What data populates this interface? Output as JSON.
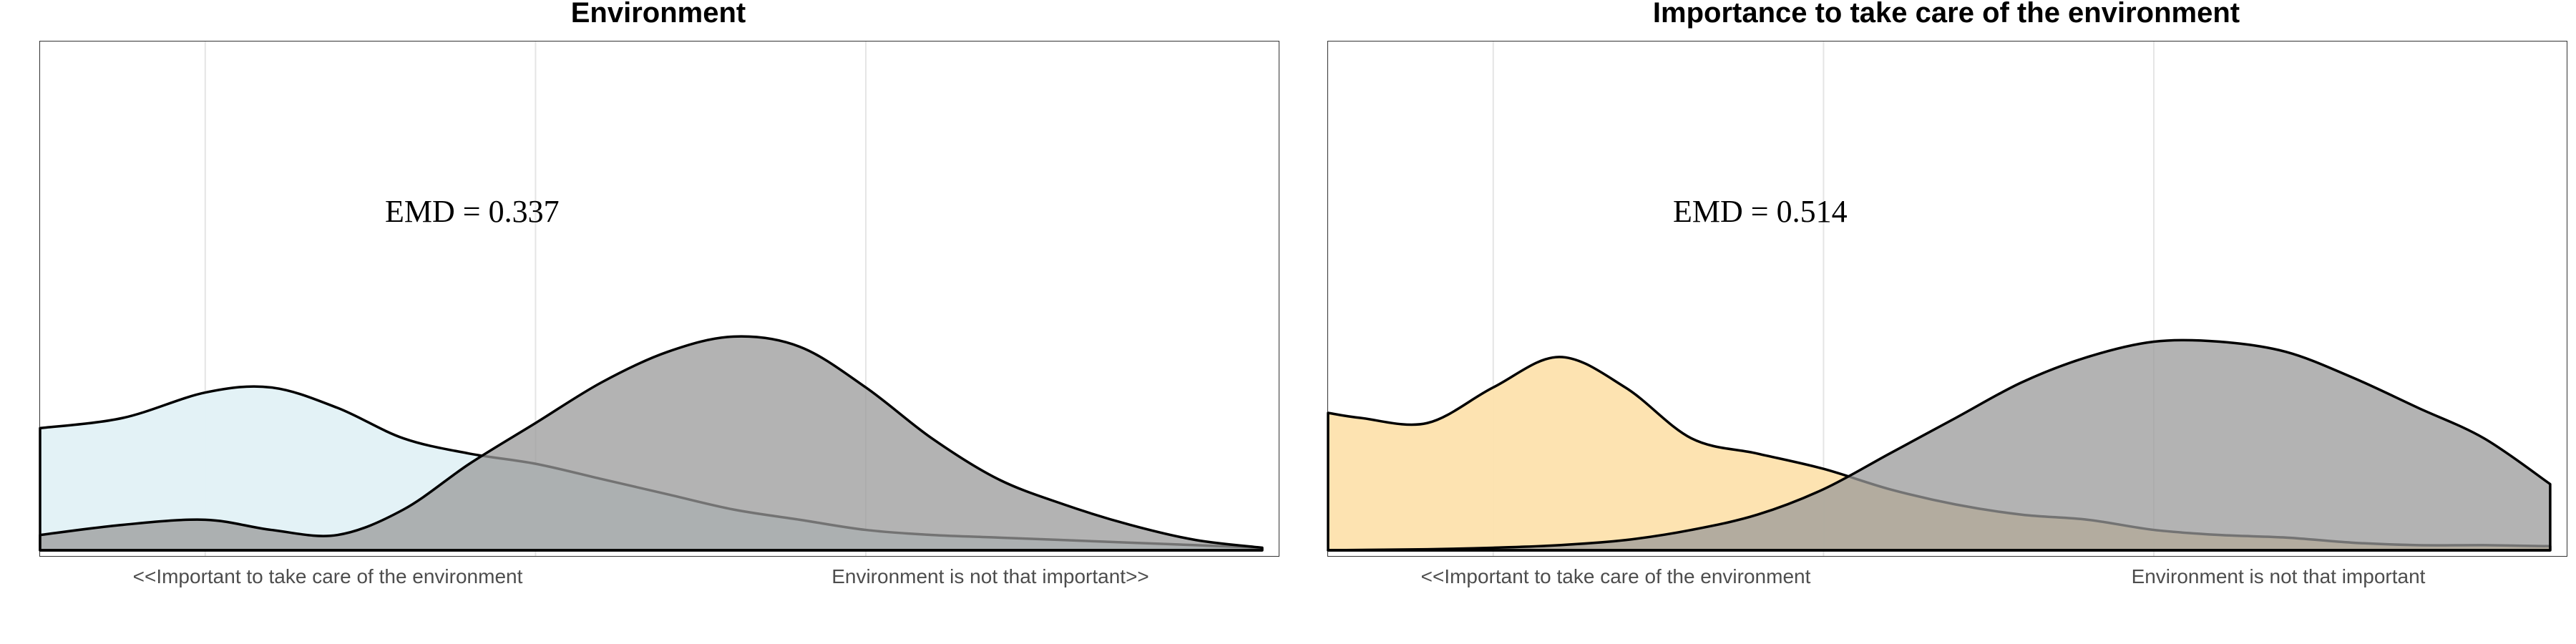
{
  "chart_data": [
    {
      "type": "area",
      "title": "Environment",
      "annotation": "EMD = 0.337",
      "x_tick_labels": [
        "<<Important to take care of the environment",
        "Environment is not that important>>"
      ],
      "xlim": [
        0.5,
        4.25
      ],
      "ylim": [
        0,
        1
      ],
      "grid": "vertical",
      "series": [
        {
          "color": "#e1f1f6",
          "x": [
            0.5,
            0.75,
            1.0,
            1.2,
            1.4,
            1.6,
            1.8,
            2.0,
            2.2,
            2.4,
            2.6,
            2.8,
            3.0,
            3.2,
            3.4,
            3.6,
            3.8,
            4.0,
            4.2
          ],
          "y": [
            0.24,
            0.26,
            0.31,
            0.32,
            0.28,
            0.22,
            0.19,
            0.17,
            0.14,
            0.11,
            0.08,
            0.06,
            0.04,
            0.03,
            0.025,
            0.02,
            0.015,
            0.01,
            0.005
          ]
        },
        {
          "color": "#999999",
          "x": [
            0.5,
            0.75,
            1.0,
            1.2,
            1.4,
            1.6,
            1.8,
            2.0,
            2.2,
            2.4,
            2.6,
            2.8,
            3.0,
            3.2,
            3.4,
            3.6,
            3.8,
            4.0,
            4.2
          ],
          "y": [
            0.03,
            0.05,
            0.06,
            0.04,
            0.03,
            0.08,
            0.17,
            0.25,
            0.33,
            0.39,
            0.42,
            0.4,
            0.32,
            0.22,
            0.14,
            0.09,
            0.05,
            0.02,
            0.005
          ]
        }
      ]
    },
    {
      "type": "area",
      "title": "Importance to take care of the environment",
      "annotation": "EMD = 0.514",
      "x_tick_labels": [
        "<<Important to take care of the environment",
        "Environment is not that important"
      ],
      "xlim": [
        0.5,
        4.25
      ],
      "ylim": [
        0,
        1
      ],
      "grid": "vertical",
      "series": [
        {
          "color": "#fde2ad",
          "x": [
            0.5,
            0.6,
            0.8,
            1.0,
            1.2,
            1.4,
            1.6,
            1.8,
            2.0,
            2.2,
            2.4,
            2.6,
            2.8,
            3.0,
            3.2,
            3.4,
            3.6,
            3.8,
            4.0,
            4.2
          ],
          "y": [
            0.27,
            0.26,
            0.25,
            0.32,
            0.38,
            0.32,
            0.22,
            0.19,
            0.16,
            0.12,
            0.09,
            0.07,
            0.06,
            0.04,
            0.03,
            0.025,
            0.015,
            0.01,
            0.01,
            0.008
          ]
        },
        {
          "color": "#999999",
          "x": [
            0.5,
            0.8,
            1.0,
            1.2,
            1.4,
            1.6,
            1.8,
            2.0,
            2.2,
            2.4,
            2.6,
            2.8,
            3.0,
            3.2,
            3.4,
            3.6,
            3.8,
            4.0,
            4.2
          ],
          "y": [
            0.0,
            0.002,
            0.005,
            0.01,
            0.02,
            0.04,
            0.07,
            0.12,
            0.19,
            0.26,
            0.33,
            0.38,
            0.41,
            0.41,
            0.39,
            0.34,
            0.28,
            0.22,
            0.13
          ]
        }
      ]
    }
  ]
}
